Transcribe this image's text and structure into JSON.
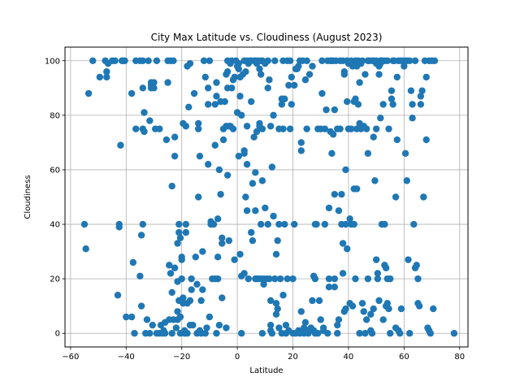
{
  "chart_data": {
    "type": "scatter",
    "title": "City Max Latitude vs. Cloudiness (August 2023)",
    "xlabel": "Latitude",
    "ylabel": "Cloudiness",
    "xlim": [
      -62,
      83
    ],
    "ylim": [
      -5,
      105
    ],
    "xticks": [
      -60,
      -40,
      -20,
      0,
      20,
      40,
      60,
      80
    ],
    "yticks": [
      0,
      20,
      40,
      60,
      80,
      100
    ],
    "grid": true,
    "marker_color": "#1f77b4",
    "points": [
      [
        -55,
        40
      ],
      [
        -54.5,
        31
      ],
      [
        -53.5,
        88
      ],
      [
        -52,
        100
      ],
      [
        -49.5,
        94
      ],
      [
        -47.5,
        100
      ],
      [
        -47,
        94
      ],
      [
        -47,
        96
      ],
      [
        -46.5,
        99
      ],
      [
        -45,
        100
      ],
      [
        -44,
        100
      ],
      [
        -43,
        14
      ],
      [
        -42.5,
        40
      ],
      [
        -42.5,
        39
      ],
      [
        -42,
        69
      ],
      [
        -41.5,
        100
      ],
      [
        -41,
        100
      ],
      [
        -40.5,
        100
      ],
      [
        -40,
        6
      ],
      [
        -38,
        6
      ],
      [
        -38,
        88
      ],
      [
        -37.5,
        26
      ],
      [
        -37,
        0
      ],
      [
        -36.5,
        100
      ],
      [
        -36.5,
        75
      ],
      [
        -35,
        100
      ],
      [
        -35,
        21
      ],
      [
        -34.5,
        10
      ],
      [
        -34.5,
        36
      ],
      [
        -34,
        100
      ],
      [
        -34,
        40
      ],
      [
        -34,
        75
      ],
      [
        -34,
        90
      ],
      [
        -33.5,
        81
      ],
      [
        -33.5,
        74
      ],
      [
        -33,
        0
      ],
      [
        -32.5,
        5
      ],
      [
        -32,
        100
      ],
      [
        -31.5,
        0
      ],
      [
        -31.5,
        78
      ],
      [
        -31,
        90
      ],
      [
        -31,
        92
      ],
      [
        -31,
        91
      ],
      [
        -30.5,
        3
      ],
      [
        -30,
        90
      ],
      [
        -30,
        92
      ],
      [
        -29.5,
        75
      ],
      [
        -29,
        100
      ],
      [
        -29,
        0
      ],
      [
        -28,
        0
      ],
      [
        -28,
        75
      ],
      [
        -27.5,
        3
      ],
      [
        -27,
        0
      ],
      [
        -26.5,
        1
      ],
      [
        -26,
        0
      ],
      [
        -26,
        4
      ],
      [
        -25.5,
        71
      ],
      [
        -25,
        92
      ],
      [
        -25,
        100
      ],
      [
        -24.5,
        25
      ],
      [
        -24.5,
        5
      ],
      [
        -24,
        100
      ],
      [
        -24,
        22
      ],
      [
        -23.5,
        15
      ],
      [
        -23.5,
        54
      ],
      [
        -23.5,
        0
      ],
      [
        -23,
        5
      ],
      [
        -23,
        100
      ],
      [
        -22.5,
        24
      ],
      [
        -22.5,
        72
      ],
      [
        -22.5,
        65
      ],
      [
        -22,
        2
      ],
      [
        -21.5,
        8
      ],
      [
        -21.5,
        5
      ],
      [
        -21.5,
        19
      ],
      [
        -21.5,
        33
      ],
      [
        -21,
        12
      ],
      [
        -21,
        40
      ],
      [
        -21,
        37
      ],
      [
        -20.5,
        0
      ],
      [
        -20.5,
        6
      ],
      [
        -20.5,
        35
      ],
      [
        -20,
        28
      ],
      [
        -20,
        20
      ],
      [
        -20,
        27
      ],
      [
        -19.5,
        13
      ],
      [
        -19.5,
        77
      ],
      [
        -19.5,
        11
      ],
      [
        -19,
        0
      ],
      [
        -19,
        1
      ],
      [
        -18.5,
        40
      ],
      [
        -18.5,
        37
      ],
      [
        -18.5,
        76
      ],
      [
        -18,
        0
      ],
      [
        -18,
        11
      ],
      [
        -18,
        98
      ],
      [
        -17.5,
        83
      ],
      [
        -17,
        12
      ],
      [
        -17,
        3
      ],
      [
        -17,
        99
      ],
      [
        -16.5,
        16
      ],
      [
        -16.5,
        20
      ],
      [
        -16,
        3
      ],
      [
        -15.5,
        88
      ],
      [
        -15,
        28
      ],
      [
        -14.5,
        0
      ],
      [
        -14.5,
        18
      ],
      [
        -14,
        50
      ],
      [
        -14,
        77
      ],
      [
        -14,
        75
      ],
      [
        -13.5,
        1
      ],
      [
        -13.5,
        65
      ],
      [
        -13,
        12
      ],
      [
        -13,
        0
      ],
      [
        -12.5,
        30
      ],
      [
        -12.5,
        16
      ],
      [
        -12,
        100
      ],
      [
        -11.5,
        0
      ],
      [
        -11.5,
        94
      ],
      [
        -11,
        2
      ],
      [
        -10.5,
        62
      ],
      [
        -10.5,
        90
      ],
      [
        -10.5,
        84
      ],
      [
        -10,
        100
      ],
      [
        -10,
        6
      ],
      [
        -9.5,
        41
      ],
      [
        -9.5,
        40
      ],
      [
        -9,
        20
      ],
      [
        -8.5,
        40
      ],
      [
        -8,
        84
      ],
      [
        -8,
        69
      ],
      [
        -8,
        20
      ],
      [
        -7.5,
        0
      ],
      [
        -7.5,
        92
      ],
      [
        -7.5,
        87
      ],
      [
        -7,
        20
      ],
      [
        -7,
        42
      ],
      [
        -7,
        28
      ],
      [
        -6.5,
        60
      ],
      [
        -6.5,
        3
      ],
      [
        -6,
        85
      ],
      [
        -6,
        51
      ],
      [
        -5.5,
        33
      ],
      [
        -5.5,
        35
      ],
      [
        -5.5,
        13
      ],
      [
        -5,
        71
      ],
      [
        -5,
        75
      ],
      [
        -4.5,
        85
      ],
      [
        -4,
        2
      ],
      [
        -4,
        95
      ],
      [
        -4,
        76
      ],
      [
        -3.5,
        58
      ],
      [
        -3.5,
        100
      ],
      [
        -3.5,
        96
      ],
      [
        -3.5,
        90
      ],
      [
        -3,
        34
      ],
      [
        -3,
        76
      ],
      [
        -2.5,
        76
      ],
      [
        -2.5,
        99
      ],
      [
        -2,
        100
      ],
      [
        -2,
        90
      ],
      [
        -1.5,
        93
      ],
      [
        -1.5,
        75
      ],
      [
        -1,
        27
      ],
      [
        -1,
        94
      ],
      [
        -0.5,
        100
      ],
      [
        0,
        81
      ],
      [
        0,
        98
      ],
      [
        0.5,
        65
      ],
      [
        0.5,
        97
      ],
      [
        0.5,
        99
      ],
      [
        1,
        29
      ],
      [
        1,
        87
      ],
      [
        1,
        94
      ],
      [
        1.5,
        21
      ],
      [
        1.5,
        80
      ],
      [
        1.5,
        0
      ],
      [
        2,
        95
      ],
      [
        2.5,
        66
      ],
      [
        2.5,
        67
      ],
      [
        2.5,
        100
      ],
      [
        2.5,
        22
      ],
      [
        3,
        96
      ],
      [
        3,
        50
      ],
      [
        3.5,
        45
      ],
      [
        3.5,
        62
      ],
      [
        3.5,
        76
      ],
      [
        3.5,
        100
      ],
      [
        4,
        99
      ],
      [
        4,
        20
      ],
      [
        4.5,
        100
      ],
      [
        5,
        100
      ],
      [
        5,
        85
      ],
      [
        5,
        37
      ],
      [
        5.5,
        34
      ],
      [
        5.5,
        55
      ],
      [
        6,
        100
      ],
      [
        6,
        72
      ],
      [
        6.5,
        100
      ],
      [
        6.5,
        59
      ],
      [
        6.5,
        20
      ],
      [
        6.5,
        45
      ],
      [
        7,
        99
      ],
      [
        7,
        74
      ],
      [
        7,
        20
      ],
      [
        7.5,
        100
      ],
      [
        7.5,
        20
      ],
      [
        8,
        97
      ],
      [
        8,
        76
      ],
      [
        8,
        77
      ],
      [
        8.5,
        100
      ],
      [
        8.5,
        95
      ],
      [
        8.5,
        20
      ],
      [
        8.5,
        40
      ],
      [
        9,
        100
      ],
      [
        9,
        75
      ],
      [
        9,
        56
      ],
      [
        9,
        0
      ],
      [
        9.5,
        18
      ],
      [
        9.5,
        20
      ],
      [
        10,
        99
      ],
      [
        10,
        46
      ],
      [
        10.5,
        20
      ],
      [
        11,
        100
      ],
      [
        11,
        90
      ],
      [
        11,
        40
      ],
      [
        11.5,
        93
      ],
      [
        11.5,
        20
      ],
      [
        12,
        76
      ],
      [
        12,
        12
      ],
      [
        12,
        3
      ],
      [
        12,
        1
      ],
      [
        12.5,
        61
      ],
      [
        12.5,
        0
      ],
      [
        13,
        80
      ],
      [
        13,
        43
      ],
      [
        13.5,
        20
      ],
      [
        13.5,
        100
      ],
      [
        14,
        11
      ],
      [
        14,
        7
      ],
      [
        14,
        29
      ],
      [
        14.5,
        34
      ],
      [
        14.5,
        9
      ],
      [
        15,
        75
      ],
      [
        15,
        40
      ],
      [
        15,
        2
      ],
      [
        15.5,
        20
      ],
      [
        16,
        86
      ],
      [
        16,
        84
      ],
      [
        16,
        0
      ],
      [
        16.5,
        100
      ],
      [
        16.5,
        75
      ],
      [
        16.5,
        14
      ],
      [
        17,
        86
      ],
      [
        17,
        40
      ],
      [
        17.5,
        3
      ],
      [
        17.5,
        0
      ],
      [
        18,
        20
      ],
      [
        18,
        100
      ],
      [
        18.5,
        91
      ],
      [
        18.5,
        1
      ],
      [
        19,
        100
      ],
      [
        19,
        75
      ],
      [
        19.5,
        94
      ],
      [
        19.5,
        84
      ],
      [
        20,
        20
      ],
      [
        20,
        0
      ],
      [
        20.5,
        91
      ],
      [
        20.5,
        40
      ],
      [
        21,
        97
      ],
      [
        21,
        0
      ],
      [
        21.5,
        97
      ],
      [
        22,
        98
      ],
      [
        22,
        1
      ],
      [
        22.5,
        100
      ],
      [
        22.5,
        0
      ],
      [
        23,
        67
      ],
      [
        23,
        70
      ],
      [
        23,
        8
      ],
      [
        23.5,
        100
      ],
      [
        24,
        0
      ],
      [
        24,
        2
      ],
      [
        24.5,
        93
      ],
      [
        24.5,
        4
      ],
      [
        25,
        75
      ],
      [
        25,
        100
      ],
      [
        25.5,
        1
      ],
      [
        25.5,
        0
      ],
      [
        26,
        95
      ],
      [
        26.5,
        2
      ],
      [
        27,
        98
      ],
      [
        27,
        12
      ],
      [
        27.5,
        1
      ],
      [
        27.5,
        21
      ],
      [
        28,
        0
      ],
      [
        28,
        20
      ],
      [
        28,
        40
      ],
      [
        28.5,
        40
      ],
      [
        29,
        0
      ],
      [
        29,
        75
      ],
      [
        29.5,
        12
      ],
      [
        30,
        5
      ],
      [
        30,
        75
      ],
      [
        30.5,
        88
      ],
      [
        30.5,
        100
      ],
      [
        31,
        1
      ],
      [
        31,
        2
      ],
      [
        31.5,
        75
      ],
      [
        31.5,
        40
      ],
      [
        32,
        82
      ],
      [
        32.5,
        100
      ],
      [
        32.5,
        0
      ],
      [
        33,
        46
      ],
      [
        33,
        17
      ],
      [
        33,
        20
      ],
      [
        33.5,
        100
      ],
      [
        33.5,
        74
      ],
      [
        34,
        100
      ],
      [
        34,
        66
      ],
      [
        34.5,
        73
      ],
      [
        34.5,
        100
      ],
      [
        35,
        82
      ],
      [
        35,
        51
      ],
      [
        35,
        20
      ],
      [
        35,
        17
      ],
      [
        35.5,
        100
      ],
      [
        36,
        75
      ],
      [
        36,
        3
      ],
      [
        36,
        0
      ],
      [
        36.5,
        45
      ],
      [
        36.5,
        5
      ],
      [
        37,
        100
      ],
      [
        37,
        75
      ],
      [
        37.5,
        51
      ],
      [
        37.5,
        40
      ],
      [
        38,
        100
      ],
      [
        38,
        22
      ],
      [
        38,
        33
      ],
      [
        38.5,
        96
      ],
      [
        38.5,
        95
      ],
      [
        38.5,
        8
      ],
      [
        39,
        60
      ],
      [
        39,
        40
      ],
      [
        39,
        9
      ],
      [
        39.5,
        100
      ],
      [
        39.5,
        85
      ],
      [
        39.5,
        31
      ],
      [
        40,
        99
      ],
      [
        40,
        75
      ],
      [
        40.5,
        42
      ],
      [
        40.5,
        11
      ],
      [
        41,
        100
      ],
      [
        41,
        75
      ],
      [
        41,
        40
      ],
      [
        41.5,
        98
      ],
      [
        41.5,
        10
      ],
      [
        42,
        85
      ],
      [
        42,
        53
      ],
      [
        42,
        40
      ],
      [
        42.5,
        100
      ],
      [
        42.5,
        86
      ],
      [
        42.5,
        20
      ],
      [
        43,
        98
      ],
      [
        43,
        75
      ],
      [
        43,
        53
      ],
      [
        43.5,
        84
      ],
      [
        43.5,
        100
      ],
      [
        44,
        92
      ],
      [
        44,
        77
      ],
      [
        44,
        0
      ],
      [
        44.5,
        99
      ],
      [
        44.5,
        75
      ],
      [
        45,
        100
      ],
      [
        45,
        11
      ],
      [
        45.5,
        76
      ],
      [
        45.5,
        8
      ],
      [
        46,
        95
      ],
      [
        46,
        0
      ],
      [
        46.5,
        75
      ],
      [
        46.5,
        5
      ],
      [
        47,
        100
      ],
      [
        47,
        66
      ],
      [
        47,
        20
      ],
      [
        47.5,
        100
      ],
      [
        48,
        7
      ],
      [
        48,
        1
      ],
      [
        48.5,
        100
      ],
      [
        48.5,
        0
      ],
      [
        49,
        100
      ],
      [
        49,
        72
      ],
      [
        49,
        9
      ],
      [
        49.5,
        56
      ],
      [
        50,
        100
      ],
      [
        50,
        99
      ],
      [
        50,
        75
      ],
      [
        50,
        27
      ],
      [
        50.5,
        22
      ],
      [
        50.5,
        20
      ],
      [
        51,
        98
      ],
      [
        51,
        95
      ],
      [
        51,
        12
      ],
      [
        51.5,
        100
      ],
      [
        51.5,
        99
      ],
      [
        51.5,
        79
      ],
      [
        52,
        100
      ],
      [
        52,
        100
      ],
      [
        52,
        40
      ],
      [
        52.5,
        84
      ],
      [
        52.5,
        5
      ],
      [
        53,
        100
      ],
      [
        53,
        40
      ],
      [
        53,
        25
      ],
      [
        53.5,
        24
      ],
      [
        53.5,
        10
      ],
      [
        54,
        100
      ],
      [
        54,
        20
      ],
      [
        54,
        11
      ],
      [
        54.5,
        75
      ],
      [
        54.5,
        9
      ],
      [
        55,
        20
      ],
      [
        55,
        0
      ],
      [
        55.5,
        89
      ],
      [
        55.5,
        86
      ],
      [
        56,
        84
      ],
      [
        56,
        100
      ],
      [
        56.5,
        100
      ],
      [
        57,
        50
      ],
      [
        57,
        2
      ],
      [
        57.5,
        94
      ],
      [
        57.5,
        71
      ],
      [
        58,
        100
      ],
      [
        58,
        1
      ],
      [
        58.5,
        0
      ],
      [
        59,
        100
      ],
      [
        59,
        9
      ],
      [
        60,
        100
      ],
      [
        60,
        98
      ],
      [
        60.5,
        66
      ],
      [
        61,
        56
      ],
      [
        61,
        100
      ],
      [
        61.5,
        27
      ],
      [
        62,
        100
      ],
      [
        62,
        0
      ],
      [
        62.5,
        89
      ],
      [
        63,
        84
      ],
      [
        63,
        79
      ],
      [
        63.5,
        40
      ],
      [
        64,
        100
      ],
      [
        64,
        24
      ],
      [
        64.5,
        25
      ],
      [
        65,
        20
      ],
      [
        65,
        11
      ],
      [
        65.5,
        10
      ],
      [
        66,
        84
      ],
      [
        66,
        87
      ],
      [
        66.5,
        89
      ],
      [
        67,
        50
      ],
      [
        67.5,
        100
      ],
      [
        68,
        94
      ],
      [
        68,
        71
      ],
      [
        68.5,
        2
      ],
      [
        69,
        100
      ],
      [
        69,
        1
      ],
      [
        69.5,
        0
      ],
      [
        70,
        100
      ],
      [
        70.5,
        9
      ],
      [
        71,
        100
      ],
      [
        78,
        0
      ]
    ]
  }
}
